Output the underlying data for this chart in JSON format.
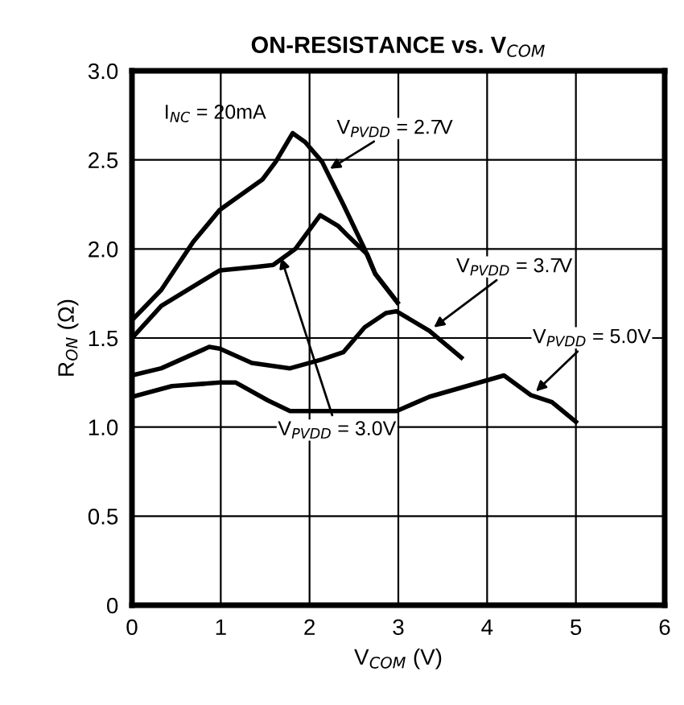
{
  "chart_data": {
    "type": "line",
    "title": "ON-RESISTANCE vs. V$_{COM}$",
    "xlabel": "V$_{COM}$ (V)",
    "ylabel": "R$_{ON}$ (Ω)",
    "xlim": [
      0,
      6
    ],
    "xticks": [
      0,
      1,
      2,
      3,
      4,
      5,
      6
    ],
    "ylim": [
      0,
      3.0
    ],
    "yticks": [
      {
        "value": 0,
        "label": "0"
      },
      {
        "value": 0.5,
        "label": "0.5"
      },
      {
        "value": 1.0,
        "label": "1.0"
      },
      {
        "value": 1.5,
        "label": "1.5"
      },
      {
        "value": 2.0,
        "label": "2.0"
      },
      {
        "value": 2.5,
        "label": "2.5"
      },
      {
        "value": 3.0,
        "label": "3.0"
      }
    ],
    "grid": true,
    "legend": false,
    "marker": "none",
    "line_style": "solid",
    "series": [
      {
        "color": "#000000",
        "x": [
          0,
          0.33,
          0.69,
          0.99,
          1.47,
          1.62,
          1.81,
          1.95,
          2.14,
          2.38,
          2.62,
          2.74,
          2.99
        ],
        "values": [
          1.6,
          1.77,
          2.04,
          2.22,
          2.39,
          2.49,
          2.65,
          2.6,
          2.49,
          2.25,
          2.0,
          1.86,
          1.7
        ]
      },
      {
        "color": "#000000",
        "x": [
          0,
          0.33,
          0.99,
          1.41,
          1.59,
          1.84,
          2.12,
          2.32,
          2.44,
          2.65,
          2.74,
          2.99
        ],
        "values": [
          1.5,
          1.68,
          1.88,
          1.9,
          1.91,
          2.0,
          2.19,
          2.13,
          2.07,
          1.97,
          1.86,
          1.7
        ]
      },
      {
        "color": "#000000",
        "x": [
          0,
          0.33,
          0.87,
          0.99,
          1.35,
          1.78,
          2.14,
          2.38,
          2.62,
          2.86,
          2.98,
          3.35,
          3.71
        ],
        "values": [
          1.29,
          1.33,
          1.45,
          1.44,
          1.36,
          1.33,
          1.38,
          1.42,
          1.56,
          1.64,
          1.65,
          1.54,
          1.39
        ]
      },
      {
        "color": "#000000",
        "x": [
          0,
          0.45,
          0.99,
          1.17,
          1.53,
          1.78,
          2.98,
          3.35,
          4.19,
          4.49,
          4.73,
          5.0
        ],
        "values": [
          1.17,
          1.23,
          1.25,
          1.25,
          1.15,
          1.09,
          1.09,
          1.17,
          1.29,
          1.18,
          1.14,
          1.03
        ]
      }
    ],
    "annotations": [
      "I$_{NC}$ = 20mA",
      {
        "text": "V$_{PVDD}$ = 2.7V",
        "x": 2.23,
        "y": 2.45
      },
      {
        "text": "V$_{PVDD}$ = 3.0V",
        "x": 1.68,
        "y": 1.95
      },
      {
        "text": "V$_{PVDD}$ = 3.7V",
        "x": 3.4,
        "y": 1.56
      },
      {
        "text": "V$_{PVDD}$ = 5.0V",
        "x": 4.55,
        "y": 1.2
      }
    ]
  }
}
